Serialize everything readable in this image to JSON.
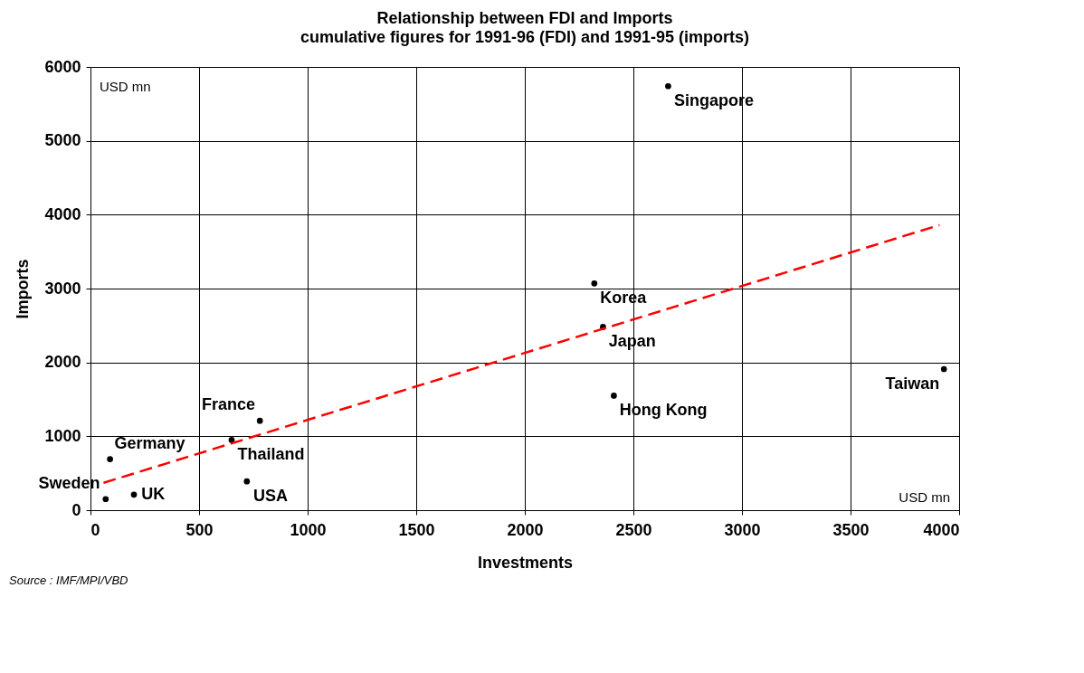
{
  "chart_data": {
    "type": "scatter",
    "title": "Relationship between FDI and Imports",
    "subtitle": "cumulative figures for 1991-96 (FDI) and 1991-95 (imports)",
    "xlabel": "Investments",
    "ylabel": "Imports",
    "xlim": [
      0,
      4000
    ],
    "ylim": [
      0,
      6000
    ],
    "xticks": [
      0,
      500,
      1000,
      1500,
      2000,
      2500,
      3000,
      3500,
      4000
    ],
    "yticks": [
      0,
      1000,
      2000,
      3000,
      4000,
      5000,
      6000
    ],
    "grid": true,
    "marker": "circle",
    "series": [
      {
        "color": "#000000",
        "x": [
          2660,
          2320,
          2360,
          2410,
          3930,
          780,
          650,
          90,
          720,
          200,
          70
        ],
        "values": [
          5740,
          3070,
          2480,
          1550,
          1910,
          1210,
          950,
          690,
          390,
          210,
          150
        ]
      },
      {
        "type": "line",
        "color": "#ff0000",
        "line_style": "dashed",
        "marker": "none",
        "x": [
          60,
          3910
        ],
        "values": [
          370,
          3860
        ]
      }
    ],
    "annotations": [
      "USD mn",
      "USD mn",
      "Source : IMF/MPI/VBD",
      {
        "text": "Singapore",
        "x": 2662,
        "y": 5737
      },
      {
        "text": "Korea",
        "x": 2322,
        "y": 3074
      },
      {
        "text": "Japan",
        "x": 2361,
        "y": 2480
      },
      {
        "text": "Hong Kong",
        "x": 2411,
        "y": 1554
      },
      {
        "text": "Taiwan",
        "x": 3934,
        "y": 1909
      },
      {
        "text": "France",
        "x": 783,
        "y": 1211
      },
      {
        "text": "Thailand",
        "x": 652,
        "y": 949
      },
      {
        "text": "Germany",
        "x": 85,
        "y": 686
      },
      {
        "text": "USA",
        "x": 725,
        "y": 389
      },
      {
        "text": "UK",
        "x": 197,
        "y": 206
      },
      {
        "text": "Sweden",
        "x": 69,
        "y": 149
      }
    ]
  }
}
